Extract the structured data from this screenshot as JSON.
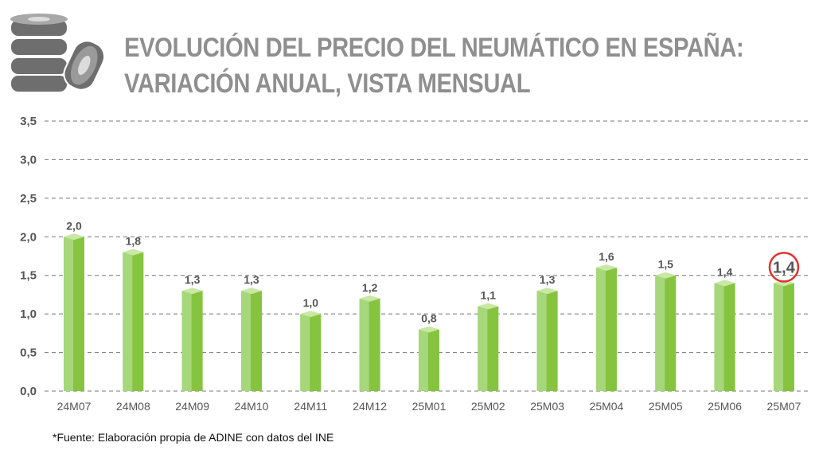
{
  "title_line1": "EVOLUCIÓN DEL PRECIO DEL NEUMÁTICO EN ESPAÑA:",
  "title_line2": "VARIACIÓN ANUAL, VISTA MENSUAL",
  "source_note": "*Fuente: Elaboración propia de ADINE con datos del INE",
  "icon": "tires-stack-icon",
  "colors": {
    "bar_front": "#86c440",
    "bar_left": "#a6d77a",
    "bar_top": "#c8e8a4",
    "highlight_circle": "#e0322e",
    "title": "#8f8f8f",
    "grid": "#777777"
  },
  "chart_data": {
    "type": "bar",
    "title": "EVOLUCIÓN DEL PRECIO DEL NEUMÁTICO EN ESPAÑA: VARIACIÓN ANUAL, VISTA MENSUAL",
    "xlabel": "",
    "ylabel": "",
    "categories": [
      "24M07",
      "24M08",
      "24M09",
      "24M10",
      "24M11",
      "24M12",
      "25M01",
      "25M02",
      "25M03",
      "25M04",
      "25M05",
      "25M06",
      "25M07"
    ],
    "values": [
      2.0,
      1.8,
      1.3,
      1.3,
      1.0,
      1.2,
      0.8,
      1.1,
      1.3,
      1.6,
      1.5,
      1.4,
      1.4
    ],
    "value_labels": [
      "2,0",
      "1,8",
      "1,3",
      "1,3",
      "1,0",
      "1,2",
      "0,8",
      "1,1",
      "1,3",
      "1,6",
      "1,5",
      "1,4",
      "1,4"
    ],
    "ylim": [
      0,
      3.5
    ],
    "yticks": [
      0,
      0.5,
      1.0,
      1.5,
      2.0,
      2.5,
      3.0,
      3.5
    ],
    "ytick_labels": [
      "0,0",
      "0,5",
      "1,0",
      "1,5",
      "2,0",
      "2,5",
      "3,0",
      "3,5"
    ],
    "grid": true,
    "grid_style": "dashed",
    "highlight_index": 12
  }
}
